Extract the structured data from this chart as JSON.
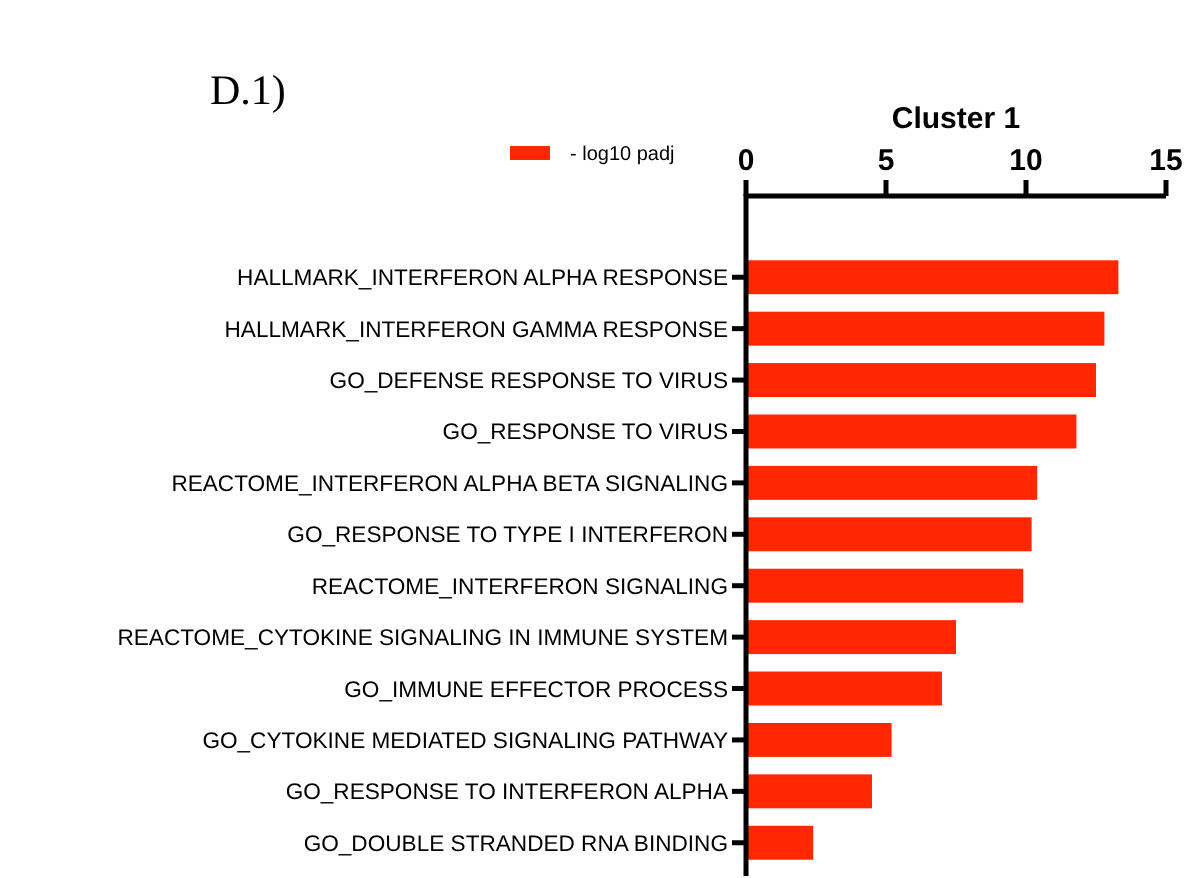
{
  "chart_data": {
    "type": "bar",
    "orientation": "horizontal",
    "title": "Cluster 1",
    "annotations": [
      "D.1)"
    ],
    "categories": [
      "HALLMARK_INTERFERON ALPHA RESPONSE",
      "HALLMARK_INTERFERON GAMMA RESPONSE",
      "GO_DEFENSE RESPONSE TO VIRUS",
      "GO_RESPONSE TO VIRUS",
      "REACTOME_INTERFERON ALPHA BETA SIGNALING",
      "GO_RESPONSE TO TYPE I INTERFERON",
      "REACTOME_INTERFERON SIGNALING",
      "REACTOME_CYTOKINE SIGNALING IN IMMUNE SYSTEM",
      "GO_IMMUNE EFFECTOR PROCESS",
      "GO_CYTOKINE MEDIATED SIGNALING PATHWAY",
      "GO_RESPONSE TO INTERFERON ALPHA",
      "GO_DOUBLE STRANDED RNA BINDING"
    ],
    "series": [
      {
        "name": "- log10 padj",
        "color": "#ff2600",
        "values": [
          13.3,
          12.8,
          12.5,
          11.8,
          10.4,
          10.2,
          9.9,
          7.5,
          7.0,
          5.2,
          4.5,
          2.4
        ]
      }
    ],
    "xlim": [
      0,
      15
    ],
    "xticks": [
      0,
      5,
      10,
      15
    ],
    "legend": "top left",
    "grid": false
  }
}
